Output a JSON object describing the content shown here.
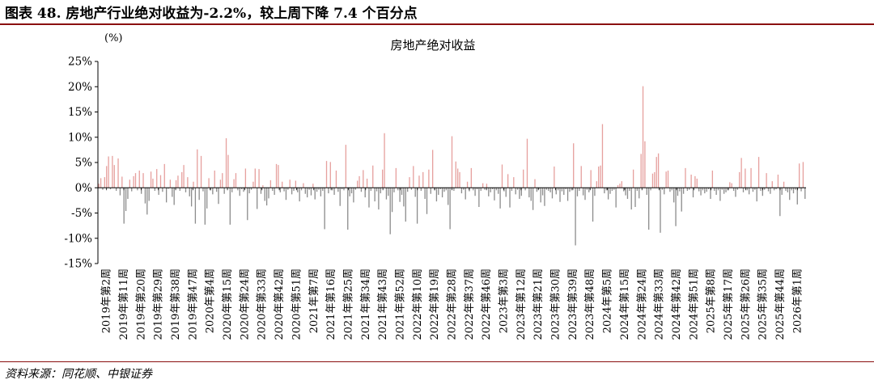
{
  "figure_title": "图表 48. 房地产行业绝对收益为-2.2%，较上周下降 7.4 个百分点",
  "source": "资料来源：同花顺、中银证券",
  "colors": {
    "positive": "#e6a09e",
    "negative": "#8c8c8c",
    "accent_rule": "#8a0f0f"
  },
  "chart_data": {
    "type": "bar",
    "title": "房地产绝对收益",
    "ylabel": "(%)",
    "ylim": [
      -15,
      25
    ],
    "yticks": [
      "25%",
      "20%",
      "15%",
      "10%",
      "5%",
      "0%",
      "-5%",
      "-10%",
      "-15%"
    ],
    "grid": false,
    "xticks": [
      "2019年第2周",
      "2019年第11周",
      "2019年第20周",
      "2019年第29周",
      "2019年第38周",
      "2019年第47周",
      "2020年第4周",
      "2020年第15周",
      "2020年第24周",
      "2020年第33周",
      "2020年第42周",
      "2020年第51周",
      "2021年第7周",
      "2021年第16周",
      "2021年第25周",
      "2021年第34周",
      "2021年第43周",
      "2021年第52周",
      "2022年第10周",
      "2022年第19周",
      "2022年第28周",
      "2022年第37周",
      "2022年第46周",
      "2023年第3周",
      "2023年第12周",
      "2023年第21周",
      "2023年第30周",
      "2023年第39周",
      "2023年第48周",
      "2024年第5周",
      "2024年第15周",
      "2024年第24周",
      "2024年第33周",
      "2024年第42周",
      "2024年第51周",
      "2025年第8周",
      "2025年第17周",
      "2025年第26周",
      "2025年第35周",
      "2025年第44周",
      "2026年第1周"
    ],
    "values": [
      0.8,
      1.9,
      -0.4,
      2.1,
      4.3,
      6.2,
      -0.3,
      6.3,
      4.5,
      -0.6,
      5.8,
      -1.5,
      2.2,
      -7.1,
      -4.6,
      -2.2,
      1.6,
      -0.7,
      2.3,
      2.9,
      -0.5,
      3.4,
      -1.2,
      2.9,
      -3.1,
      -5.3,
      -2.6,
      3.2,
      1.8,
      -0.6,
      3.7,
      -1.4,
      2.5,
      -0.8,
      4.7,
      -2.9,
      -0.2,
      1.6,
      -1.8,
      -3.4,
      1.5,
      2.4,
      -0.6,
      3.1,
      4.5,
      -0.9,
      2.1,
      -1.7,
      -3.7,
      1.2,
      -7.1,
      7.6,
      -2.4,
      6.3,
      -0.7,
      -7.3,
      -4.1,
      1.9,
      -0.5,
      -1.3,
      3.4,
      -0.8,
      -3.2,
      1.6,
      2.9,
      -1.2,
      9.8,
      6.5,
      -7.3,
      -0.9,
      1.7,
      2.9,
      -0.5,
      -1.6,
      -0.3,
      -0.8,
      3.8,
      -6.4,
      -1.1,
      -0.4,
      1.2,
      3.8,
      -4.2,
      3.7,
      -1.2,
      0.5,
      -2.6,
      -3.5,
      -2.1,
      1.5,
      -0.6,
      -1.4,
      4.7,
      4.5,
      -0.9,
      1.2,
      -0.7,
      -2.4,
      -0.4,
      1.6,
      -1.3,
      -0.6,
      1.4,
      -0.9,
      -2.7,
      -0.5,
      0.9,
      -1.2,
      -1.9,
      -0.4,
      -1.5,
      0.8,
      -2.3,
      -0.8,
      -0.4,
      -1.7,
      -0.6,
      -8.2,
      5.3,
      -1.1,
      5.1,
      -0.5,
      -1.4,
      3.4,
      -0.8,
      -3.6,
      -0.3,
      -0.5,
      8.5,
      -8.3,
      -1.7,
      -1.1,
      -2.9,
      -0.4,
      1.4,
      2.3,
      -0.8,
      3.5,
      -1.9,
      1.8,
      -3.9,
      -0.6,
      4.4,
      -2.7,
      -0.7,
      -4.3,
      -1.1,
      3.6,
      10.8,
      -2.3,
      -1.6,
      -9.2,
      -4.8,
      -0.9,
      3.9,
      -0.5,
      -2.8,
      -1.4,
      -3.7,
      -6.7,
      -0.8,
      2.1,
      -0.4,
      4.3,
      -1.8,
      -7.1,
      2.4,
      -0.6,
      3.1,
      -2.2,
      -5.2,
      3.6,
      -1.2,
      7.5,
      -0.5,
      -2.7,
      -1.4,
      -0.3,
      -1.9,
      -0.8,
      -0.5,
      -3.4,
      -8.2,
      10.2,
      -0.6,
      5.2,
      3.8,
      3.1,
      -1.1,
      -0.4,
      -2.3,
      1.2,
      -0.7,
      3.9,
      -0.5,
      -1.6,
      -0.3,
      -3.8,
      -0.6,
      0.9,
      -0.4,
      0.8,
      -1.7,
      -0.9,
      -0.3,
      -2.5,
      -0.5,
      -1.2,
      -4.1,
      4.6,
      -0.7,
      -1.8,
      2.7,
      -3.9,
      -0.6,
      2.1,
      -1.3,
      -0.4,
      -2.2,
      -1.6,
      3.6,
      -0.5,
      9.7,
      -1.9,
      -2.6,
      -4.4,
      1.7,
      -0.8,
      -0.3,
      -2.9,
      -1.5,
      -3.6,
      -0.4,
      -0.6,
      -0.9,
      -2.1,
      4.2,
      -1.3,
      -0.5,
      -2.8,
      -0.7,
      -1.4,
      -0.3,
      -2.6,
      -0.8,
      -0.5,
      8.8,
      -11.4,
      -1.7,
      -0.6,
      4.3,
      -1.5,
      -2.4,
      -0.4,
      -0.9,
      3.5,
      -6.7,
      -1.6,
      1.3,
      4.2,
      4.4,
      12.6,
      -1.1,
      -0.5,
      -2.3,
      -1.2,
      -0.6,
      -0.4,
      -3.9,
      0.5,
      0.8,
      1.3,
      -0.7,
      -1.5,
      -2.2,
      -0.6,
      -4.3,
      3.6,
      -3.8,
      -0.6,
      -2.1,
      6.7,
      20.1,
      9.2,
      -1.4,
      -8.3,
      -0.5,
      2.8,
      3.1,
      6.1,
      6.8,
      -8.9,
      -0.4,
      -1.3,
      3.2,
      3.4,
      -0.8,
      -0.5,
      -2.9,
      -7.6,
      -1.6,
      -0.7,
      -4.7,
      -1.2,
      3.9,
      -0.6,
      -0.4,
      2.6,
      -1.9,
      2.3,
      1.8,
      -0.7,
      -1.5,
      -0.5,
      -1.1,
      -0.8,
      -0.3,
      -2.2,
      3.4,
      -0.6,
      -1.4,
      -0.5,
      -2.6,
      -0.4,
      -1.2,
      -0.9,
      -0.5,
      1.1,
      0.9,
      -0.6,
      -1.8,
      -0.4,
      3.1,
      5.9,
      -0.9,
      3.8,
      -0.5,
      -1.3,
      3.9,
      -0.8,
      -0.4,
      -2.7,
      6.1,
      -0.6,
      -1.6,
      -0.4,
      2.9,
      -0.7,
      -1.2,
      1.3,
      -0.5,
      -0.3,
      2.6,
      -5.6,
      -1.4,
      1.2,
      -0.6,
      -0.9,
      -2.4,
      -0.5,
      -1.1,
      -0.4,
      -3.3,
      4.8,
      -0.7,
      5.1,
      -2.2
    ]
  }
}
